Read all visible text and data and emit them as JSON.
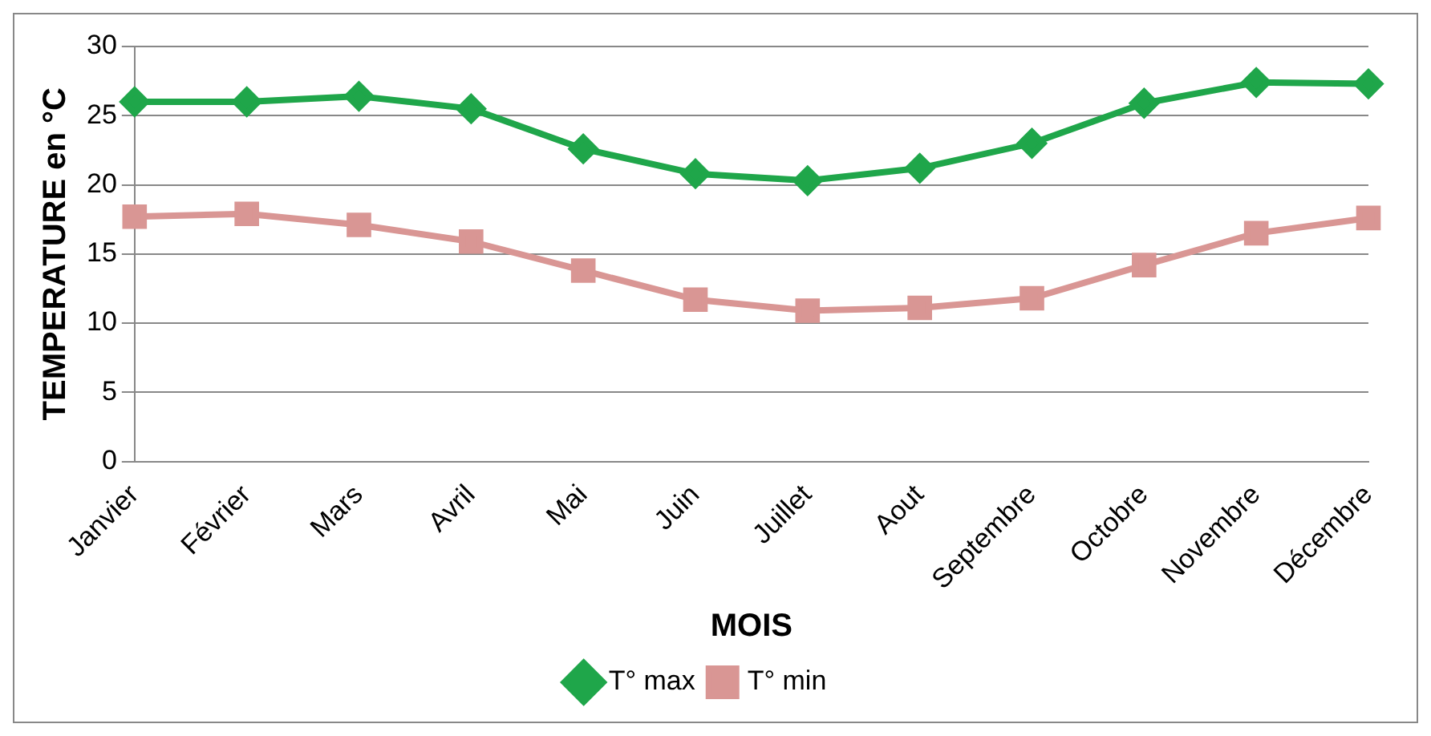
{
  "chart_data": {
    "type": "line",
    "xlabel": "MOIS",
    "ylabel": "TEMPERATURE en °C",
    "categories": [
      "Janvier",
      "Février",
      "Mars",
      "Avril",
      "Mai",
      "Juin",
      "Juillet",
      "Aout",
      "Septembre",
      "Octobre",
      "Novembre",
      "Décembre"
    ],
    "series": [
      {
        "name": "T° max",
        "color": "#1fa64a",
        "marker": "diamond",
        "values": [
          26,
          26,
          26.4,
          25.5,
          22.6,
          20.8,
          20.3,
          21.2,
          23,
          25.9,
          27.4,
          27.3
        ]
      },
      {
        "name": "T° min",
        "color": "#d99694",
        "marker": "square",
        "values": [
          17.7,
          17.9,
          17.1,
          15.9,
          13.8,
          11.7,
          10.9,
          11.1,
          11.8,
          14.2,
          16.5,
          17.6
        ]
      }
    ],
    "ylim": [
      0,
      30
    ],
    "yticks": [
      0,
      5,
      10,
      15,
      20,
      25,
      30
    ],
    "grid": "y",
    "legend": "bottom",
    "line_style": "solid"
  }
}
